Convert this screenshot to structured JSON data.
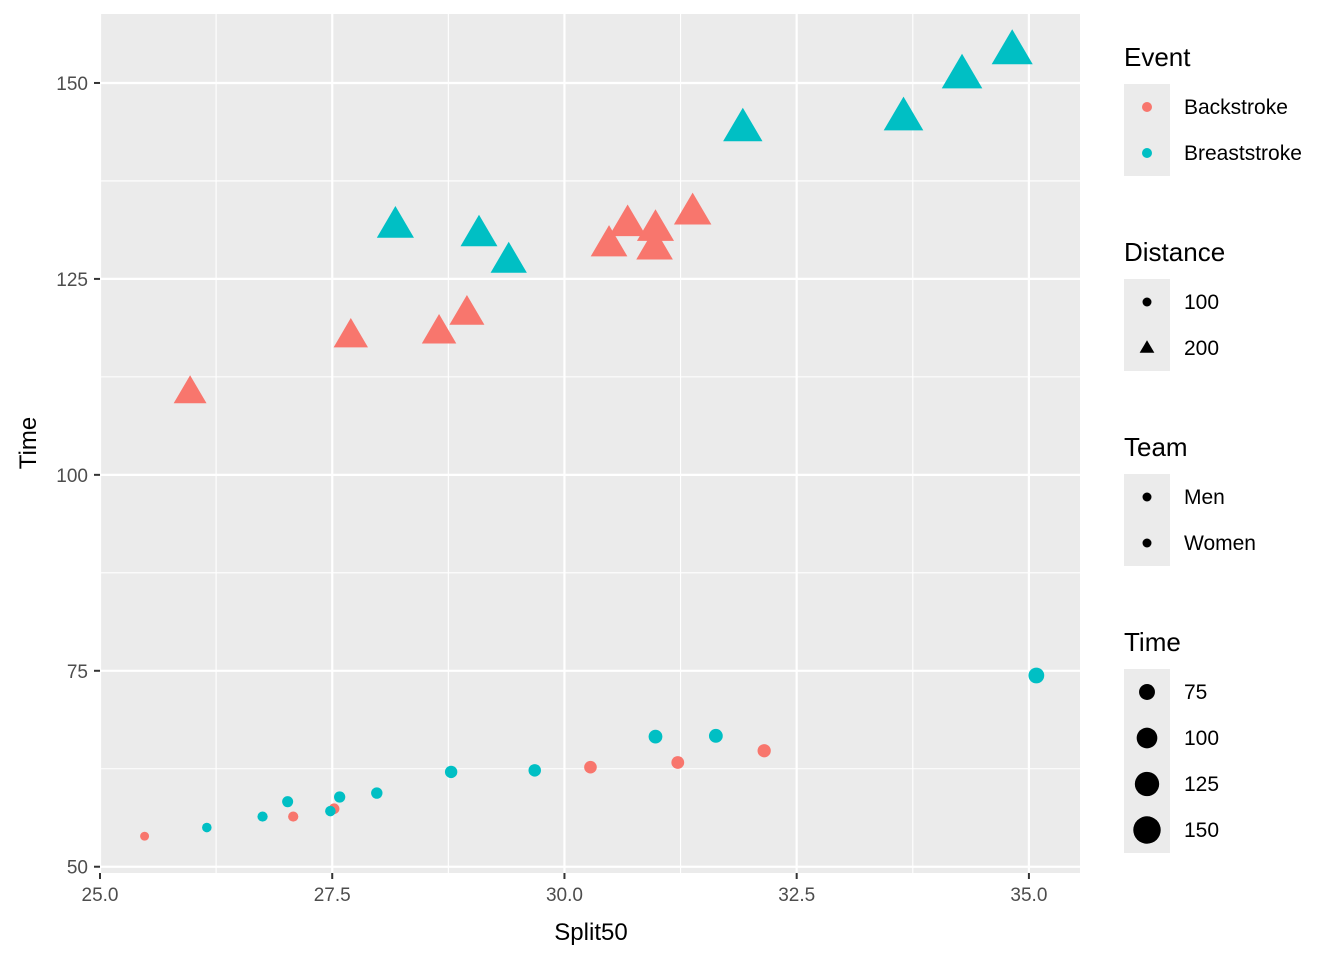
{
  "chart_data": {
    "type": "scatter",
    "title": "",
    "xlabel": "Split50",
    "ylabel": "Time",
    "xlim": [
      25.0,
      35.55
    ],
    "ylim": [
      49.2,
      158.8
    ],
    "x_ticks": [
      25.0,
      27.5,
      30.0,
      32.5,
      35.0
    ],
    "x_tick_labels": [
      "25.0",
      "27.5",
      "30.0",
      "32.5",
      "35.0"
    ],
    "y_ticks": [
      50,
      75,
      100,
      125,
      150
    ],
    "y_tick_labels": [
      "50",
      "75",
      "100",
      "125",
      "150"
    ],
    "grid": true,
    "legend_position": "right",
    "encodings": {
      "color": "Event",
      "shape": "Distance",
      "size": "Time"
    },
    "legends": [
      {
        "title": "Event",
        "kind": "color",
        "entries": [
          {
            "label": "Backstroke",
            "color": "#F8766D"
          },
          {
            "label": "Breaststroke",
            "color": "#00BFC4"
          }
        ]
      },
      {
        "title": "Distance",
        "kind": "shape",
        "entries": [
          {
            "label": "100",
            "shape": "circle"
          },
          {
            "label": "200",
            "shape": "triangle"
          }
        ]
      },
      {
        "title": "Team",
        "kind": "none",
        "entries": [
          {
            "label": "Men",
            "shape": "circle"
          },
          {
            "label": "Women",
            "shape": "circle"
          }
        ]
      },
      {
        "title": "Time",
        "kind": "size",
        "entries": [
          {
            "label": "75",
            "value": 75
          },
          {
            "label": "100",
            "value": 100
          },
          {
            "label": "125",
            "value": 125
          },
          {
            "label": "150",
            "value": 150
          }
        ]
      }
    ],
    "series": [
      {
        "event": "Backstroke",
        "color": "#F8766D",
        "points": [
          {
            "x": 25.48,
            "y": 53.9,
            "distance": 100
          },
          {
            "x": 27.08,
            "y": 56.4,
            "distance": 100
          },
          {
            "x": 27.52,
            "y": 57.4,
            "distance": 100
          },
          {
            "x": 30.28,
            "y": 62.7,
            "distance": 100
          },
          {
            "x": 31.22,
            "y": 63.3,
            "distance": 100
          },
          {
            "x": 32.15,
            "y": 64.8,
            "distance": 100
          },
          {
            "x": 25.97,
            "y": 110.5,
            "distance": 200
          },
          {
            "x": 27.7,
            "y": 117.7,
            "distance": 200
          },
          {
            "x": 28.65,
            "y": 118.2,
            "distance": 200
          },
          {
            "x": 28.95,
            "y": 120.6,
            "distance": 200
          },
          {
            "x": 30.48,
            "y": 129.4,
            "distance": 200
          },
          {
            "x": 30.68,
            "y": 132.0,
            "distance": 200
          },
          {
            "x": 30.98,
            "y": 131.4,
            "distance": 200
          },
          {
            "x": 30.97,
            "y": 129.0,
            "distance": 200
          },
          {
            "x": 31.38,
            "y": 133.5,
            "distance": 200
          }
        ]
      },
      {
        "event": "Breaststroke",
        "color": "#00BFC4",
        "points": [
          {
            "x": 26.15,
            "y": 55.0,
            "distance": 100
          },
          {
            "x": 26.75,
            "y": 56.4,
            "distance": 100
          },
          {
            "x": 27.02,
            "y": 58.3,
            "distance": 100
          },
          {
            "x": 27.48,
            "y": 57.1,
            "distance": 100
          },
          {
            "x": 27.58,
            "y": 58.9,
            "distance": 100
          },
          {
            "x": 27.98,
            "y": 59.4,
            "distance": 100
          },
          {
            "x": 28.78,
            "y": 62.1,
            "distance": 100
          },
          {
            "x": 29.68,
            "y": 62.3,
            "distance": 100
          },
          {
            "x": 30.98,
            "y": 66.6,
            "distance": 100
          },
          {
            "x": 31.63,
            "y": 66.7,
            "distance": 100
          },
          {
            "x": 35.08,
            "y": 74.4,
            "distance": 100
          },
          {
            "x": 28.18,
            "y": 131.8,
            "distance": 200
          },
          {
            "x": 29.08,
            "y": 130.7,
            "distance": 200
          },
          {
            "x": 29.4,
            "y": 127.3,
            "distance": 200
          },
          {
            "x": 31.92,
            "y": 144.2,
            "distance": 200
          },
          {
            "x": 33.65,
            "y": 145.6,
            "distance": 200
          },
          {
            "x": 34.28,
            "y": 151.0,
            "distance": 200
          },
          {
            "x": 34.82,
            "y": 154.1,
            "distance": 200
          }
        ]
      }
    ]
  }
}
